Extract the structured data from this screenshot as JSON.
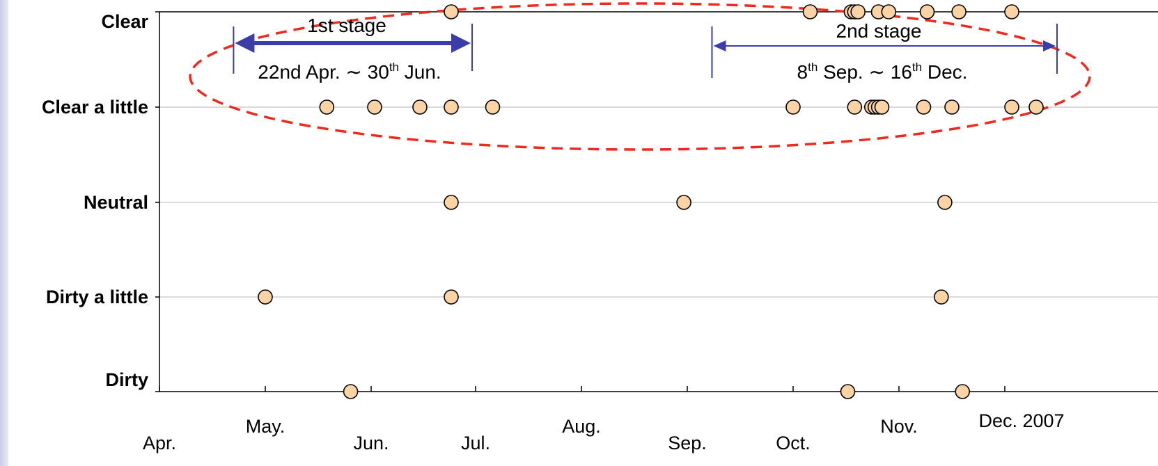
{
  "chart_data": {
    "type": "scatter",
    "x_axis": {
      "tick_labels": [
        "Apr.",
        "May.",
        "Jun.",
        "Jul.",
        "Aug.",
        "Sep.",
        "Oct.",
        "Nov.",
        "Dec. 2007"
      ]
    },
    "y_axis": {
      "categories": [
        "Dirty",
        "Dirty a little",
        "Neutral",
        "Clear a little",
        "Clear"
      ]
    },
    "grid": true,
    "points": [
      {
        "x": "2007-05-01",
        "y": "Dirty a little"
      },
      {
        "x": "2007-05-26",
        "y": "Dirty"
      },
      {
        "x": "2007-05-19",
        "y": "Clear a little"
      },
      {
        "x": "2007-06-02",
        "y": "Clear a little"
      },
      {
        "x": "2007-06-15",
        "y": "Clear a little"
      },
      {
        "x": "2007-06-24",
        "y": "Clear a little"
      },
      {
        "x": "2007-07-06",
        "y": "Clear a little"
      },
      {
        "x": "2007-06-24",
        "y": "Clear"
      },
      {
        "x": "2007-06-24",
        "y": "Neutral"
      },
      {
        "x": "2007-06-24",
        "y": "Dirty a little"
      },
      {
        "x": "2007-08-31",
        "y": "Neutral"
      },
      {
        "x": "2007-10-01",
        "y": "Clear a little"
      },
      {
        "x": "2007-10-06",
        "y": "Clear"
      },
      {
        "x": "2007-10-17",
        "y": "Dirty"
      },
      {
        "x": "2007-10-18",
        "y": "Clear"
      },
      {
        "x": "2007-10-19",
        "y": "Clear"
      },
      {
        "x": "2007-10-20",
        "y": "Clear"
      },
      {
        "x": "2007-10-19",
        "y": "Clear a little"
      },
      {
        "x": "2007-10-24",
        "y": "Clear a little"
      },
      {
        "x": "2007-10-25",
        "y": "Clear a little"
      },
      {
        "x": "2007-10-26",
        "y": "Clear a little"
      },
      {
        "x": "2007-10-27",
        "y": "Clear a little"
      },
      {
        "x": "2007-10-26",
        "y": "Clear"
      },
      {
        "x": "2007-10-29",
        "y": "Clear"
      },
      {
        "x": "2007-11-09",
        "y": "Clear"
      },
      {
        "x": "2007-11-08",
        "y": "Clear a little"
      },
      {
        "x": "2007-11-16",
        "y": "Clear a little"
      },
      {
        "x": "2007-11-14",
        "y": "Neutral"
      },
      {
        "x": "2007-11-13",
        "y": "Dirty a little"
      },
      {
        "x": "2007-11-18",
        "y": "Clear"
      },
      {
        "x": "2007-11-19",
        "y": "Dirty"
      },
      {
        "x": "2007-12-03",
        "y": "Clear"
      },
      {
        "x": "2007-12-03",
        "y": "Clear a little"
      },
      {
        "x": "2007-12-10",
        "y": "Clear a little"
      }
    ],
    "marker_color": "#fbd3a4",
    "marker_edge_color": "#000000",
    "annotations": [
      {
        "id": "stage1",
        "label": "1st stage",
        "range_prefix": "22nd Apr. ",
        "range_sym": "∼",
        "range_start": " 30",
        "range_start_sup": "th",
        "range_end": " Jun.",
        "x_start": "2007-04-22",
        "x_end": "2007-06-30",
        "arrow_color": "#3b3ea8"
      },
      {
        "id": "stage2",
        "label": "2nd stage",
        "range_start": "8",
        "range_start_sup": "th",
        "range_mid": " Sep. ",
        "range_sym": "∼",
        "range_end_num": " 16",
        "range_end_sup": "th",
        "range_end": " Dec.",
        "x_start": "2007-09-08",
        "x_end": "2007-12-16",
        "arrow_color": "#3b3ea8"
      }
    ],
    "highlight_ellipse_color": "#ee2a1f"
  }
}
